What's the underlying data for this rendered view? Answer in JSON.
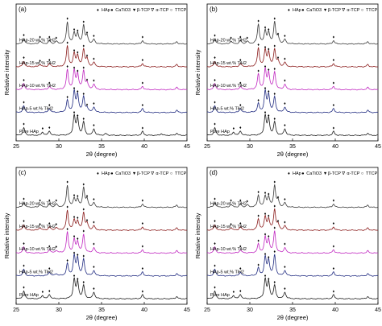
{
  "figure": {
    "ylabel": "Relative intensity",
    "xlabel": "2θ (degree)",
    "xticks": [
      "25",
      "30",
      "35",
      "40",
      "45"
    ],
    "colors": {
      "Pure HAp": "#1a1a1a",
      "HAp-5 wt.% TiH2": "#1f2a80",
      "HAp-10 wt.% TiH2": "#c026c0",
      "HAp-15 wt.% TiH2": "#8a1a1a",
      "HAp-20 wt.% TiH2": "#3a3a3a"
    },
    "legend": [
      "HAp",
      "CaTiO3",
      "β-TCP",
      "α-TCP",
      "TTCP"
    ],
    "legend_glyphs": [
      "♦",
      "●",
      "▼",
      "∇",
      "○"
    ]
  },
  "chart_data": [
    {
      "type": "line",
      "panel": "(a)",
      "xlim": [
        25,
        45
      ],
      "series": [
        {
          "name": "Pure HAp",
          "peaks": [
            [
              25.9,
              0.35
            ],
            [
              28.1,
              0.15
            ],
            [
              28.9,
              0.2
            ],
            [
              31.8,
              0.9
            ],
            [
              32.2,
              0.75
            ],
            [
              32.9,
              0.6
            ],
            [
              34.1,
              0.3
            ],
            [
              35.5,
              0.08
            ],
            [
              39.8,
              0.18
            ],
            [
              42.0,
              0.08
            ],
            [
              43.8,
              0.1
            ]
          ]
        },
        {
          "name": "HAp-5 wt.% TiH2",
          "peaks": [
            [
              25.9,
              0.3
            ],
            [
              28.9,
              0.18
            ],
            [
              31.0,
              0.55
            ],
            [
              31.8,
              0.95
            ],
            [
              32.2,
              0.8
            ],
            [
              32.9,
              0.7
            ],
            [
              33.3,
              0.2
            ],
            [
              34.1,
              0.25
            ],
            [
              39.8,
              0.18
            ],
            [
              43.8,
              0.1
            ]
          ]
        },
        {
          "name": "HAp-10 wt.% TiH2",
          "peaks": [
            [
              25.9,
              0.28
            ],
            [
              28.9,
              0.15
            ],
            [
              31.0,
              0.9
            ],
            [
              31.8,
              0.85
            ],
            [
              32.2,
              0.7
            ],
            [
              32.9,
              0.85
            ],
            [
              33.3,
              0.3
            ],
            [
              34.1,
              0.25
            ],
            [
              39.8,
              0.15
            ],
            [
              43.8,
              0.1
            ]
          ]
        },
        {
          "name": "HAp-15 wt.% TiH2",
          "peaks": [
            [
              25.9,
              0.25
            ],
            [
              27.8,
              0.12
            ],
            [
              28.9,
              0.15
            ],
            [
              31.0,
              0.95
            ],
            [
              31.8,
              0.6
            ],
            [
              32.2,
              0.5
            ],
            [
              32.9,
              0.8
            ],
            [
              33.3,
              0.35
            ],
            [
              34.1,
              0.2
            ],
            [
              39.8,
              0.15
            ],
            [
              43.8,
              0.1
            ]
          ]
        },
        {
          "name": "HAp-20 wt.% TiH2",
          "peaks": [
            [
              25.9,
              0.25
            ],
            [
              27.8,
              0.15
            ],
            [
              28.9,
              0.15
            ],
            [
              29.7,
              0.12
            ],
            [
              31.0,
              1.0
            ],
            [
              31.8,
              0.5
            ],
            [
              32.2,
              0.45
            ],
            [
              32.9,
              0.85
            ],
            [
              33.3,
              0.35
            ],
            [
              34.1,
              0.2
            ],
            [
              39.8,
              0.15
            ],
            [
              43.8,
              0.1
            ]
          ]
        }
      ]
    },
    {
      "type": "line",
      "panel": "(b)",
      "xlim": [
        25,
        45
      ],
      "series": [
        {
          "name": "Pure HAp",
          "peaks": [
            [
              25.9,
              0.35
            ],
            [
              28.1,
              0.15
            ],
            [
              28.9,
              0.2
            ],
            [
              31.8,
              0.9
            ],
            [
              32.2,
              0.75
            ],
            [
              32.9,
              0.6
            ],
            [
              34.1,
              0.3
            ],
            [
              39.8,
              0.18
            ],
            [
              43.8,
              0.1
            ]
          ]
        },
        {
          "name": "HAp-5 wt.% TiH2",
          "peaks": [
            [
              25.9,
              0.3
            ],
            [
              28.9,
              0.18
            ],
            [
              31.0,
              0.4
            ],
            [
              31.8,
              0.95
            ],
            [
              32.2,
              0.8
            ],
            [
              32.9,
              0.7
            ],
            [
              34.1,
              0.25
            ],
            [
              39.8,
              0.18
            ],
            [
              43.8,
              0.1
            ]
          ]
        },
        {
          "name": "HAp-10 wt.% TiH2",
          "peaks": [
            [
              25.9,
              0.28
            ],
            [
              28.9,
              0.15
            ],
            [
              31.0,
              0.7
            ],
            [
              31.8,
              0.9
            ],
            [
              32.2,
              0.75
            ],
            [
              32.9,
              0.8
            ],
            [
              34.1,
              0.25
            ],
            [
              39.8,
              0.15
            ],
            [
              43.8,
              0.1
            ]
          ]
        },
        {
          "name": "HAp-15 wt.% TiH2",
          "peaks": [
            [
              25.9,
              0.25
            ],
            [
              28.9,
              0.15
            ],
            [
              31.0,
              0.85
            ],
            [
              31.8,
              0.75
            ],
            [
              32.2,
              0.65
            ],
            [
              32.9,
              0.8
            ],
            [
              33.3,
              0.25
            ],
            [
              34.1,
              0.2
            ],
            [
              39.8,
              0.15
            ],
            [
              43.8,
              0.1
            ]
          ]
        },
        {
          "name": "HAp-20 wt.% TiH2",
          "peaks": [
            [
              25.9,
              0.22
            ],
            [
              27.8,
              0.12
            ],
            [
              28.9,
              0.15
            ],
            [
              29.7,
              0.12
            ],
            [
              31.0,
              0.9
            ],
            [
              31.8,
              0.6
            ],
            [
              32.2,
              0.5
            ],
            [
              32.9,
              1.0
            ],
            [
              33.3,
              0.3
            ],
            [
              34.1,
              0.2
            ],
            [
              39.8,
              0.15
            ],
            [
              43.8,
              0.1
            ]
          ]
        }
      ]
    },
    {
      "type": "line",
      "panel": "(c)",
      "xlim": [
        25,
        45
      ],
      "series": [
        {
          "name": "Pure HAp",
          "peaks": [
            [
              25.9,
              0.35
            ],
            [
              28.1,
              0.15
            ],
            [
              28.9,
              0.2
            ],
            [
              31.8,
              0.9
            ],
            [
              32.2,
              0.75
            ],
            [
              32.9,
              0.6
            ],
            [
              34.1,
              0.3
            ],
            [
              39.8,
              0.18
            ],
            [
              43.8,
              0.1
            ]
          ]
        },
        {
          "name": "HAp-5 wt.% TiH2",
          "peaks": [
            [
              25.9,
              0.3
            ],
            [
              28.9,
              0.18
            ],
            [
              29.7,
              0.1
            ],
            [
              31.0,
              0.55
            ],
            [
              31.8,
              0.9
            ],
            [
              32.2,
              0.8
            ],
            [
              32.9,
              0.75
            ],
            [
              34.1,
              0.25
            ],
            [
              39.8,
              0.18
            ],
            [
              43.8,
              0.1
            ]
          ]
        },
        {
          "name": "HAp-10 wt.% TiH2",
          "peaks": [
            [
              25.9,
              0.28
            ],
            [
              28.9,
              0.15
            ],
            [
              29.7,
              0.12
            ],
            [
              31.0,
              0.95
            ],
            [
              31.8,
              0.6
            ],
            [
              32.2,
              0.5
            ],
            [
              32.9,
              0.85
            ],
            [
              34.1,
              0.25
            ],
            [
              39.8,
              0.15
            ],
            [
              43.8,
              0.1
            ]
          ]
        },
        {
          "name": "HAp-15 wt.% TiH2",
          "peaks": [
            [
              25.9,
              0.25
            ],
            [
              27.8,
              0.12
            ],
            [
              28.9,
              0.15
            ],
            [
              29.7,
              0.12
            ],
            [
              31.0,
              0.9
            ],
            [
              31.8,
              0.45
            ],
            [
              32.2,
              0.4
            ],
            [
              32.9,
              0.8
            ],
            [
              33.3,
              0.3
            ],
            [
              34.1,
              0.2
            ],
            [
              39.8,
              0.15
            ],
            [
              43.8,
              0.1
            ]
          ]
        },
        {
          "name": "HAp-20 wt.% TiH2",
          "peaks": [
            [
              25.9,
              0.22
            ],
            [
              27.8,
              0.15
            ],
            [
              28.9,
              0.15
            ],
            [
              29.7,
              0.15
            ],
            [
              31.0,
              1.0
            ],
            [
              31.8,
              0.4
            ],
            [
              32.2,
              0.35
            ],
            [
              32.9,
              0.9
            ],
            [
              33.3,
              0.35
            ],
            [
              34.1,
              0.2
            ],
            [
              39.8,
              0.15
            ],
            [
              43.8,
              0.1
            ]
          ]
        }
      ]
    },
    {
      "type": "line",
      "panel": "(d)",
      "xlim": [
        25,
        45
      ],
      "series": [
        {
          "name": "Pure HAp",
          "peaks": [
            [
              25.9,
              0.35
            ],
            [
              28.1,
              0.15
            ],
            [
              28.9,
              0.2
            ],
            [
              31.8,
              0.9
            ],
            [
              32.2,
              0.75
            ],
            [
              32.9,
              0.6
            ],
            [
              34.1,
              0.3
            ],
            [
              39.8,
              0.18
            ],
            [
              43.8,
              0.1
            ]
          ]
        },
        {
          "name": "HAp-5 wt.% TiH2",
          "peaks": [
            [
              25.9,
              0.3
            ],
            [
              28.9,
              0.18
            ],
            [
              31.0,
              0.35
            ],
            [
              31.8,
              0.85
            ],
            [
              32.2,
              0.7
            ],
            [
              32.9,
              0.95
            ],
            [
              34.1,
              0.25
            ],
            [
              39.8,
              0.18
            ],
            [
              43.8,
              0.1
            ]
          ]
        },
        {
          "name": "HAp-10 wt.% TiH2",
          "peaks": [
            [
              25.9,
              0.28
            ],
            [
              28.9,
              0.15
            ],
            [
              31.0,
              0.4
            ],
            [
              31.8,
              0.7
            ],
            [
              32.2,
              0.6
            ],
            [
              32.9,
              1.0
            ],
            [
              34.1,
              0.25
            ],
            [
              39.8,
              0.15
            ],
            [
              43.8,
              0.1
            ]
          ]
        },
        {
          "name": "HAp-15 wt.% TiH2",
          "peaks": [
            [
              25.9,
              0.25
            ],
            [
              27.8,
              0.12
            ],
            [
              28.9,
              0.15
            ],
            [
              31.0,
              0.5
            ],
            [
              31.8,
              0.6
            ],
            [
              32.2,
              0.5
            ],
            [
              32.9,
              0.95
            ],
            [
              33.3,
              0.25
            ],
            [
              34.1,
              0.2
            ],
            [
              39.8,
              0.15
            ],
            [
              43.8,
              0.1
            ]
          ]
        },
        {
          "name": "HAp-20 wt.% TiH2",
          "peaks": [
            [
              25.9,
              0.22
            ],
            [
              27.8,
              0.15
            ],
            [
              28.9,
              0.15
            ],
            [
              29.7,
              0.12
            ],
            [
              31.0,
              0.55
            ],
            [
              31.8,
              0.5
            ],
            [
              32.2,
              0.45
            ],
            [
              32.9,
              1.0
            ],
            [
              33.3,
              0.3
            ],
            [
              34.1,
              0.2
            ],
            [
              39.8,
              0.15
            ],
            [
              43.8,
              0.1
            ]
          ]
        }
      ]
    }
  ]
}
